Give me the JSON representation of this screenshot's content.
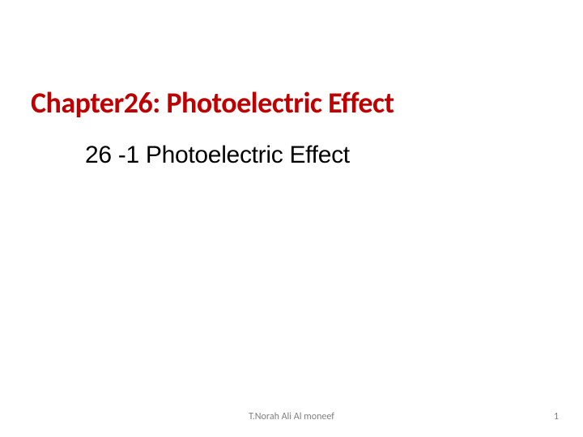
{
  "chapter": {
    "title": "Chapter26:   Photoelectric Effect",
    "title_color": "#c00000",
    "title_fontsize": 36,
    "title_fontweight": 700
  },
  "section": {
    "title": "26 -1  Photoelectric Effect",
    "title_color": "#000000",
    "title_fontsize": 30
  },
  "footer": {
    "author": "T.Norah Ali Al moneef",
    "author_color": "#7f7f7f",
    "author_fontsize": 12,
    "page_number": "1",
    "page_color": "#7f7f7f",
    "page_fontsize": 12
  },
  "background_color": "#ffffff"
}
